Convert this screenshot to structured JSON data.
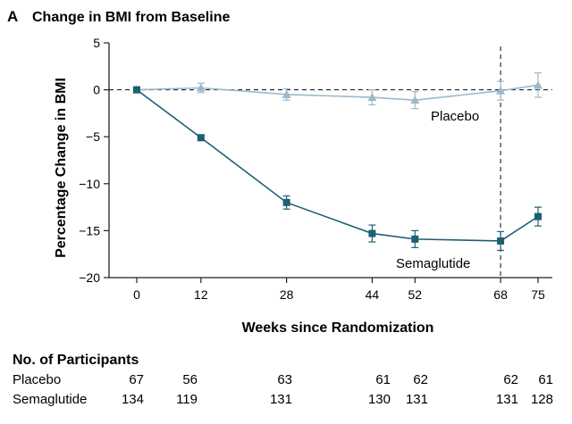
{
  "panel": {
    "letter": "A",
    "title": "Change in BMI from Baseline"
  },
  "colors": {
    "placebo": "#9db8c9",
    "semaglutide": "#1e5f73",
    "axis": "#222222"
  },
  "chart_data": {
    "type": "line",
    "title": "Change in BMI from Baseline",
    "xlabel": "Weeks since Randomization",
    "ylabel": "Percentage Change in BMI",
    "x": [
      0,
      12,
      28,
      44,
      52,
      68,
      75
    ],
    "xticks": [
      "0",
      "12",
      "28",
      "44",
      "52",
      "68",
      "75"
    ],
    "ylim": [
      -20,
      5
    ],
    "yticks": [
      "5",
      "0",
      "−5",
      "−10",
      "−15",
      "−20"
    ],
    "reference_lines": {
      "horizontal_at": 0,
      "vertical_at": 68
    },
    "series": [
      {
        "name": "Placebo",
        "marker": "triangle",
        "values": [
          0,
          0.2,
          -0.5,
          -0.8,
          -1.1,
          -0.1,
          0.5
        ],
        "err": [
          0.3,
          0.5,
          0.6,
          0.8,
          0.9,
          1.0,
          1.3
        ]
      },
      {
        "name": "Semaglutide",
        "marker": "square",
        "values": [
          0,
          -5.1,
          -12.0,
          -15.3,
          -15.9,
          -16.1,
          -13.5
        ],
        "err": [
          0.2,
          0.3,
          0.7,
          0.9,
          0.9,
          1.0,
          1.0
        ]
      }
    ]
  },
  "participants": {
    "heading": "No. of Participants",
    "rows": [
      {
        "label": "Placebo",
        "values": [
          "67",
          "56",
          "63",
          "61",
          "62",
          "62",
          "61"
        ]
      },
      {
        "label": "Semaglutide",
        "values": [
          "134",
          "119",
          "131",
          "130",
          "131",
          "131",
          "128"
        ]
      }
    ]
  }
}
